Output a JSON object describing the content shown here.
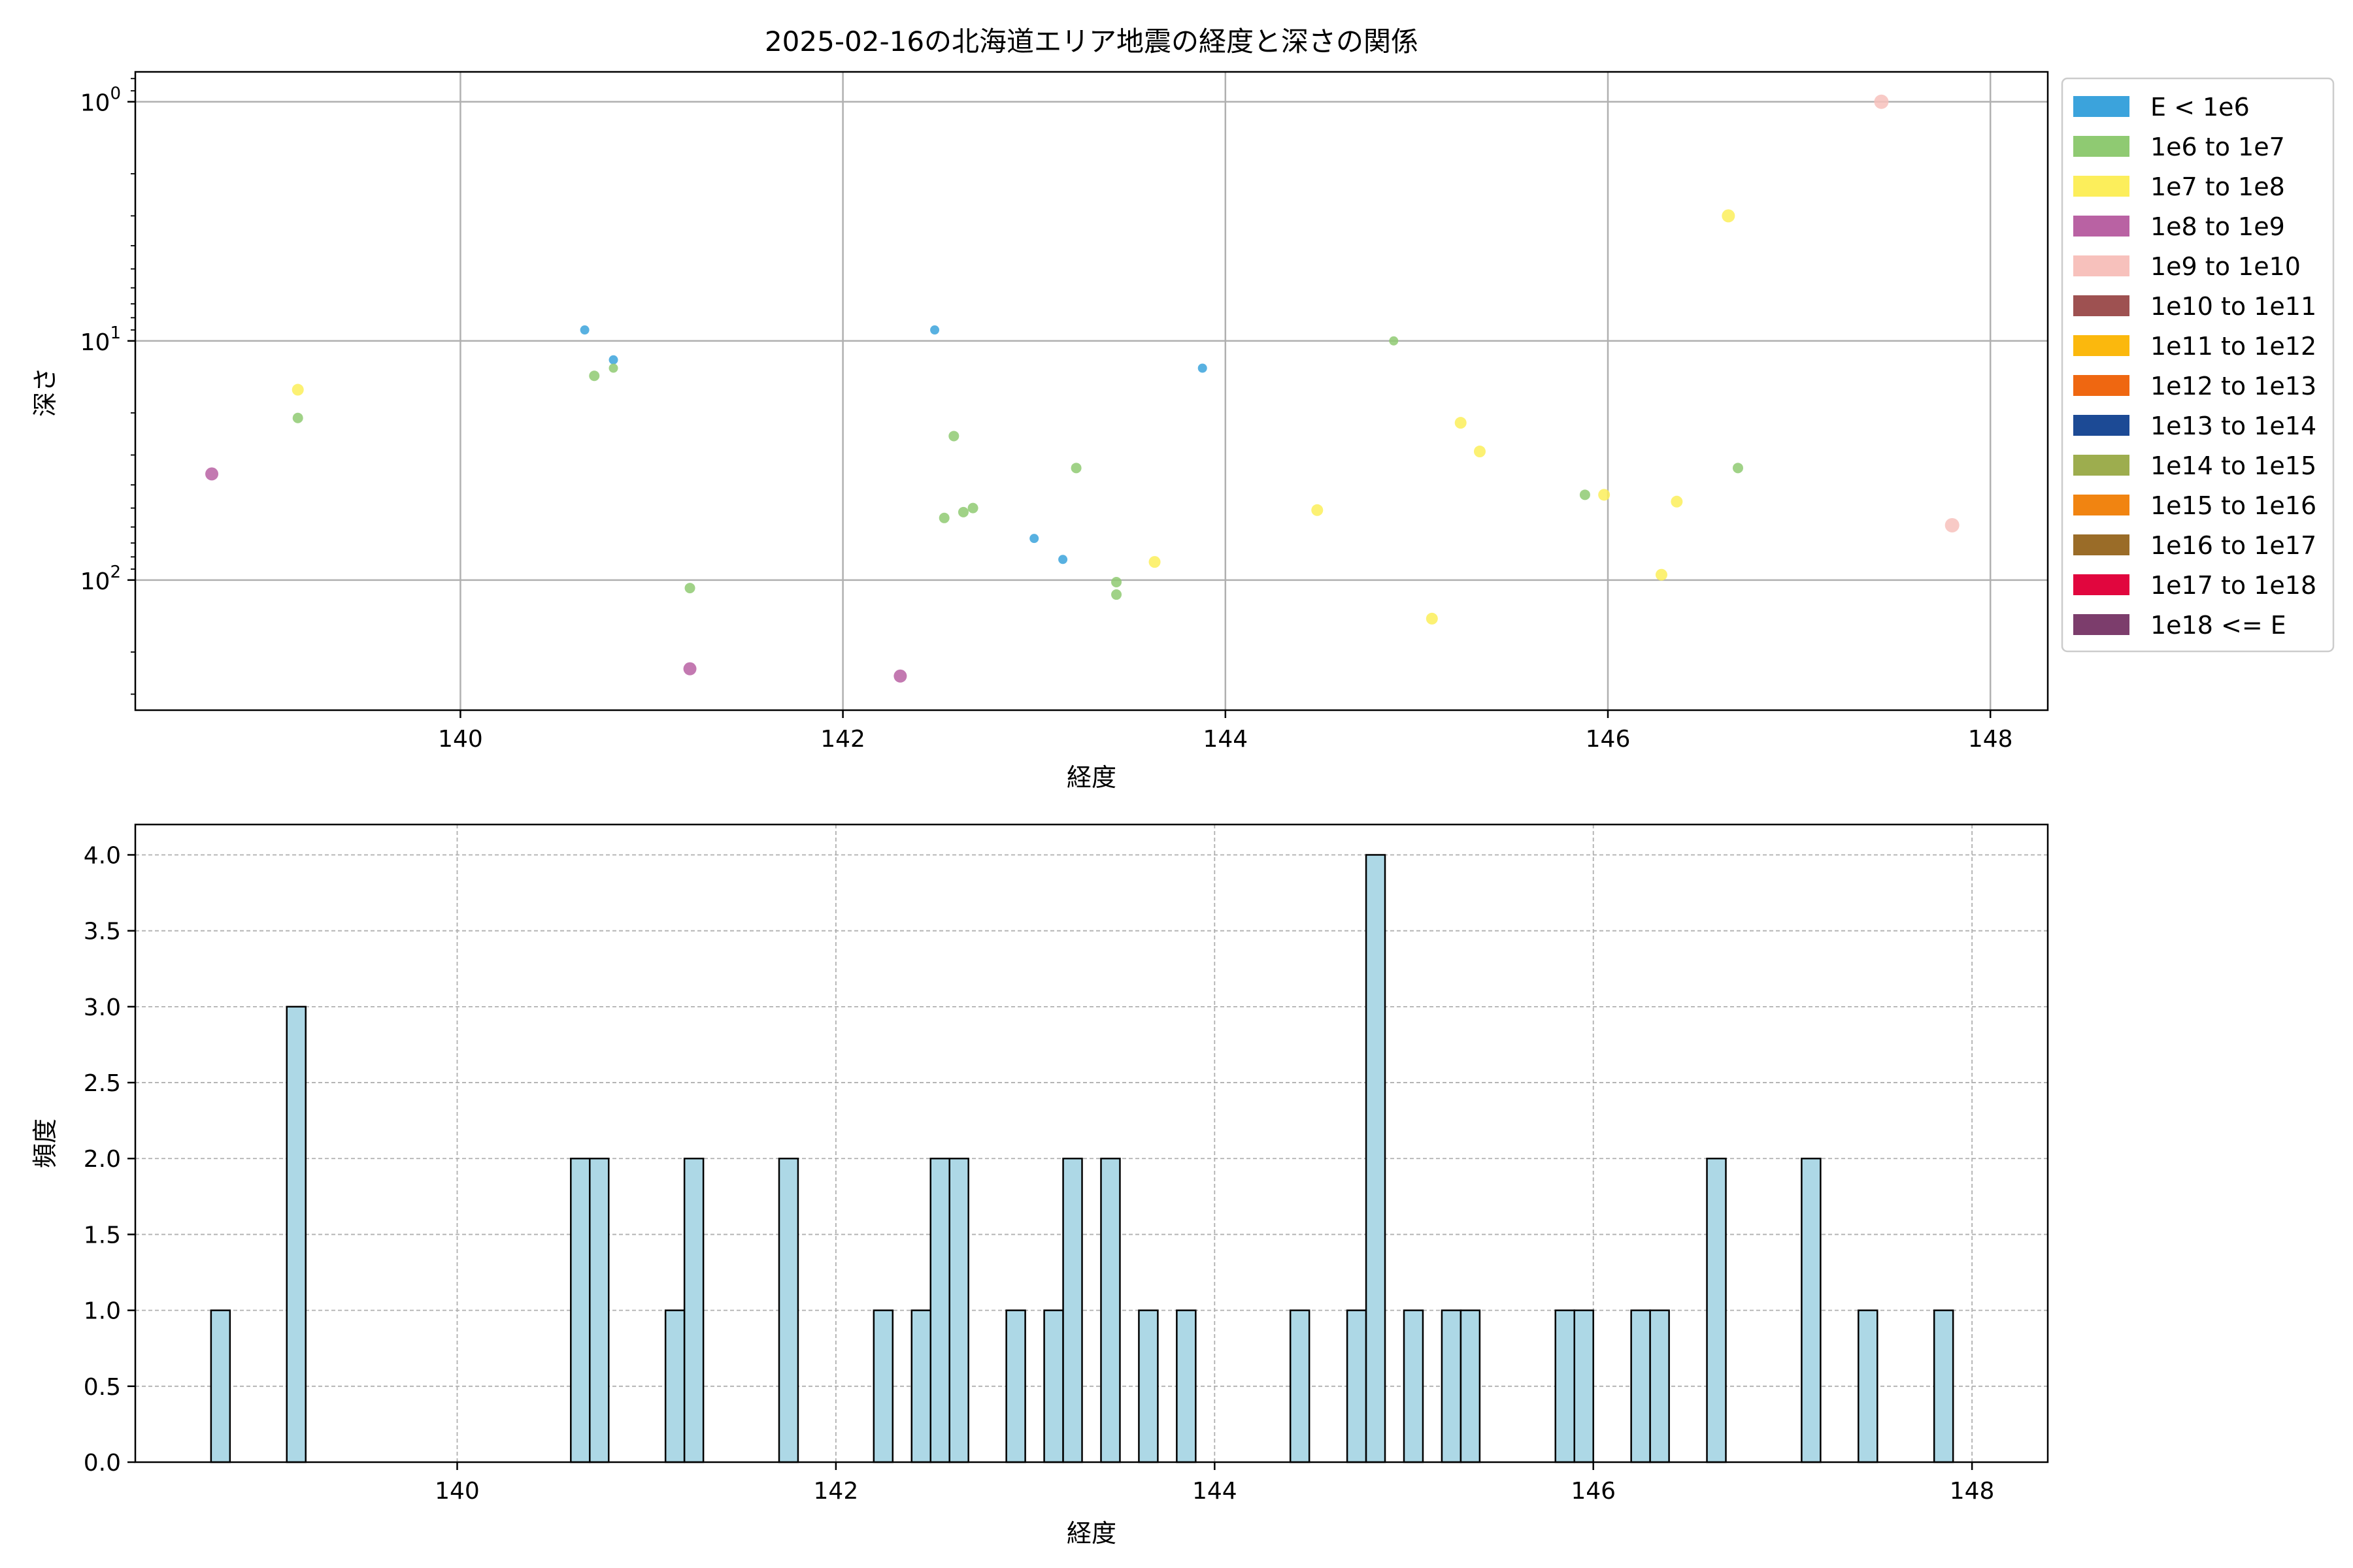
{
  "chart_data": [
    {
      "type": "scatter",
      "title": "2025-02-16の北海道エリア地震の経度と深さの関係",
      "xlabel": "経度",
      "ylabel": "深さ",
      "xlim": [
        138.3,
        148.3
      ],
      "ylim": [
        350,
        0.75
      ],
      "yscale": "log",
      "y_inverted": true,
      "grid": true,
      "x_ticks": [
        140,
        142,
        144,
        146,
        148
      ],
      "x_tick_labels": [
        "140",
        "142",
        "144",
        "146",
        "148"
      ],
      "y_ticks": [
        1,
        10,
        100
      ],
      "y_tick_labels": [
        [
          "10",
          "0"
        ],
        [
          "10",
          "1"
        ],
        [
          "10",
          "2"
        ]
      ],
      "legend_position": "outside-right",
      "legend": [
        {
          "label": "E < 1e6",
          "color": "#3ba3dc"
        },
        {
          "label": "1e6 to 1e7",
          "color": "#8fca72"
        },
        {
          "label": "1e7 to 1e8",
          "color": "#fcee5b"
        },
        {
          "label": "1e8 to 1e9",
          "color": "#b962a3"
        },
        {
          "label": "1e9 to 1e10",
          "color": "#f7c1bc"
        },
        {
          "label": "1e10 to 1e11",
          "color": "#9e5151"
        },
        {
          "label": "1e11 to 1e12",
          "color": "#fbb80d"
        },
        {
          "label": "1e12 to 1e13",
          "color": "#ef6711"
        },
        {
          "label": "1e13 to 1e14",
          "color": "#1c4a95"
        },
        {
          "label": "1e14 to 1e15",
          "color": "#9dad4e"
        },
        {
          "label": "1e15 to 1e16",
          "color": "#f18411"
        },
        {
          "label": "1e16 to 1e17",
          "color": "#9a6c28"
        },
        {
          "label": "1e17 to 1e18",
          "color": "#e1063e"
        },
        {
          "label": "1e18 <= E",
          "color": "#7c3d6c"
        }
      ],
      "points": [
        {
          "x": 138.7,
          "y": 36,
          "color": "#b962a3",
          "size": 10
        },
        {
          "x": 139.15,
          "y": 16,
          "color": "#fcee5b",
          "size": 9
        },
        {
          "x": 139.15,
          "y": 21,
          "color": "#8fca72",
          "size": 8
        },
        {
          "x": 140.65,
          "y": 9,
          "color": "#3ba3dc",
          "size": 7
        },
        {
          "x": 140.7,
          "y": 14,
          "color": "#8fca72",
          "size": 8
        },
        {
          "x": 140.8,
          "y": 12,
          "color": "#3ba3dc",
          "size": 7
        },
        {
          "x": 140.8,
          "y": 13,
          "color": "#8fca72",
          "size": 7
        },
        {
          "x": 141.2,
          "y": 108,
          "color": "#8fca72",
          "size": 8
        },
        {
          "x": 141.2,
          "y": 235,
          "color": "#b962a3",
          "size": 10
        },
        {
          "x": 142.3,
          "y": 252,
          "color": "#b962a3",
          "size": 10
        },
        {
          "x": 142.48,
          "y": 9,
          "color": "#3ba3dc",
          "size": 7
        },
        {
          "x": 142.53,
          "y": 55,
          "color": "#8fca72",
          "size": 8
        },
        {
          "x": 142.58,
          "y": 25,
          "color": "#8fca72",
          "size": 8
        },
        {
          "x": 142.63,
          "y": 52,
          "color": "#8fca72",
          "size": 8
        },
        {
          "x": 142.68,
          "y": 50,
          "color": "#8fca72",
          "size": 8
        },
        {
          "x": 143.0,
          "y": 67,
          "color": "#3ba3dc",
          "size": 7
        },
        {
          "x": 143.15,
          "y": 82,
          "color": "#3ba3dc",
          "size": 7
        },
        {
          "x": 143.22,
          "y": 34,
          "color": "#8fca72",
          "size": 8
        },
        {
          "x": 143.43,
          "y": 102,
          "color": "#8fca72",
          "size": 8
        },
        {
          "x": 143.43,
          "y": 115,
          "color": "#8fca72",
          "size": 8
        },
        {
          "x": 143.63,
          "y": 84,
          "color": "#fcee5b",
          "size": 9
        },
        {
          "x": 143.88,
          "y": 13,
          "color": "#3ba3dc",
          "size": 7
        },
        {
          "x": 144.48,
          "y": 51,
          "color": "#fcee5b",
          "size": 9
        },
        {
          "x": 144.88,
          "y": 10,
          "color": "#8fca72",
          "size": 7
        },
        {
          "x": 145.08,
          "y": 145,
          "color": "#fcee5b",
          "size": 9
        },
        {
          "x": 145.23,
          "y": 22,
          "color": "#fcee5b",
          "size": 9
        },
        {
          "x": 145.33,
          "y": 29,
          "color": "#fcee5b",
          "size": 9
        },
        {
          "x": 145.88,
          "y": 44,
          "color": "#8fca72",
          "size": 8
        },
        {
          "x": 145.98,
          "y": 44,
          "color": "#fcee5b",
          "size": 9
        },
        {
          "x": 146.28,
          "y": 95,
          "color": "#fcee5b",
          "size": 9
        },
        {
          "x": 146.36,
          "y": 47,
          "color": "#fcee5b",
          "size": 9
        },
        {
          "x": 146.63,
          "y": 3,
          "color": "#fcee5b",
          "size": 10
        },
        {
          "x": 146.68,
          "y": 34,
          "color": "#8fca72",
          "size": 8
        },
        {
          "x": 147.43,
          "y": 1,
          "color": "#f7c1bc",
          "size": 11
        },
        {
          "x": 147.8,
          "y": 59,
          "color": "#f7c1bc",
          "size": 11
        }
      ]
    },
    {
      "type": "bar",
      "xlabel": "経度",
      "ylabel": "頻度",
      "xlim": [
        138.3,
        148.4
      ],
      "ylim": [
        0,
        4.2
      ],
      "grid": true,
      "grid_style": "dashed",
      "bin_width": 0.1,
      "bar_color": "#add8e6",
      "edge_color": "#000000",
      "x_ticks": [
        140,
        142,
        144,
        146,
        148
      ],
      "x_tick_labels": [
        "140",
        "142",
        "144",
        "146",
        "148"
      ],
      "y_ticks": [
        0,
        0.5,
        1,
        1.5,
        2,
        2.5,
        3,
        3.5,
        4
      ],
      "y_tick_labels": [
        "0.0",
        "0.5",
        "1.0",
        "1.5",
        "2.0",
        "2.5",
        "3.0",
        "3.5",
        "4.0"
      ],
      "bins": [
        {
          "x": 138.75,
          "value": 1
        },
        {
          "x": 139.15,
          "value": 3
        },
        {
          "x": 140.65,
          "value": 2
        },
        {
          "x": 140.75,
          "value": 2
        },
        {
          "x": 141.15,
          "value": 1
        },
        {
          "x": 141.25,
          "value": 2
        },
        {
          "x": 141.75,
          "value": 2
        },
        {
          "x": 142.25,
          "value": 1
        },
        {
          "x": 142.45,
          "value": 1
        },
        {
          "x": 142.55,
          "value": 2
        },
        {
          "x": 142.65,
          "value": 2
        },
        {
          "x": 142.95,
          "value": 1
        },
        {
          "x": 143.15,
          "value": 1
        },
        {
          "x": 143.25,
          "value": 2
        },
        {
          "x": 143.45,
          "value": 2
        },
        {
          "x": 143.65,
          "value": 1
        },
        {
          "x": 143.85,
          "value": 1
        },
        {
          "x": 144.45,
          "value": 1
        },
        {
          "x": 144.75,
          "value": 1
        },
        {
          "x": 144.85,
          "value": 4
        },
        {
          "x": 145.05,
          "value": 1
        },
        {
          "x": 145.25,
          "value": 1
        },
        {
          "x": 145.35,
          "value": 1
        },
        {
          "x": 145.85,
          "value": 1
        },
        {
          "x": 145.95,
          "value": 1
        },
        {
          "x": 146.25,
          "value": 1
        },
        {
          "x": 146.35,
          "value": 1
        },
        {
          "x": 146.65,
          "value": 2
        },
        {
          "x": 147.15,
          "value": 2
        },
        {
          "x": 147.45,
          "value": 1
        },
        {
          "x": 147.85,
          "value": 1
        }
      ]
    }
  ]
}
